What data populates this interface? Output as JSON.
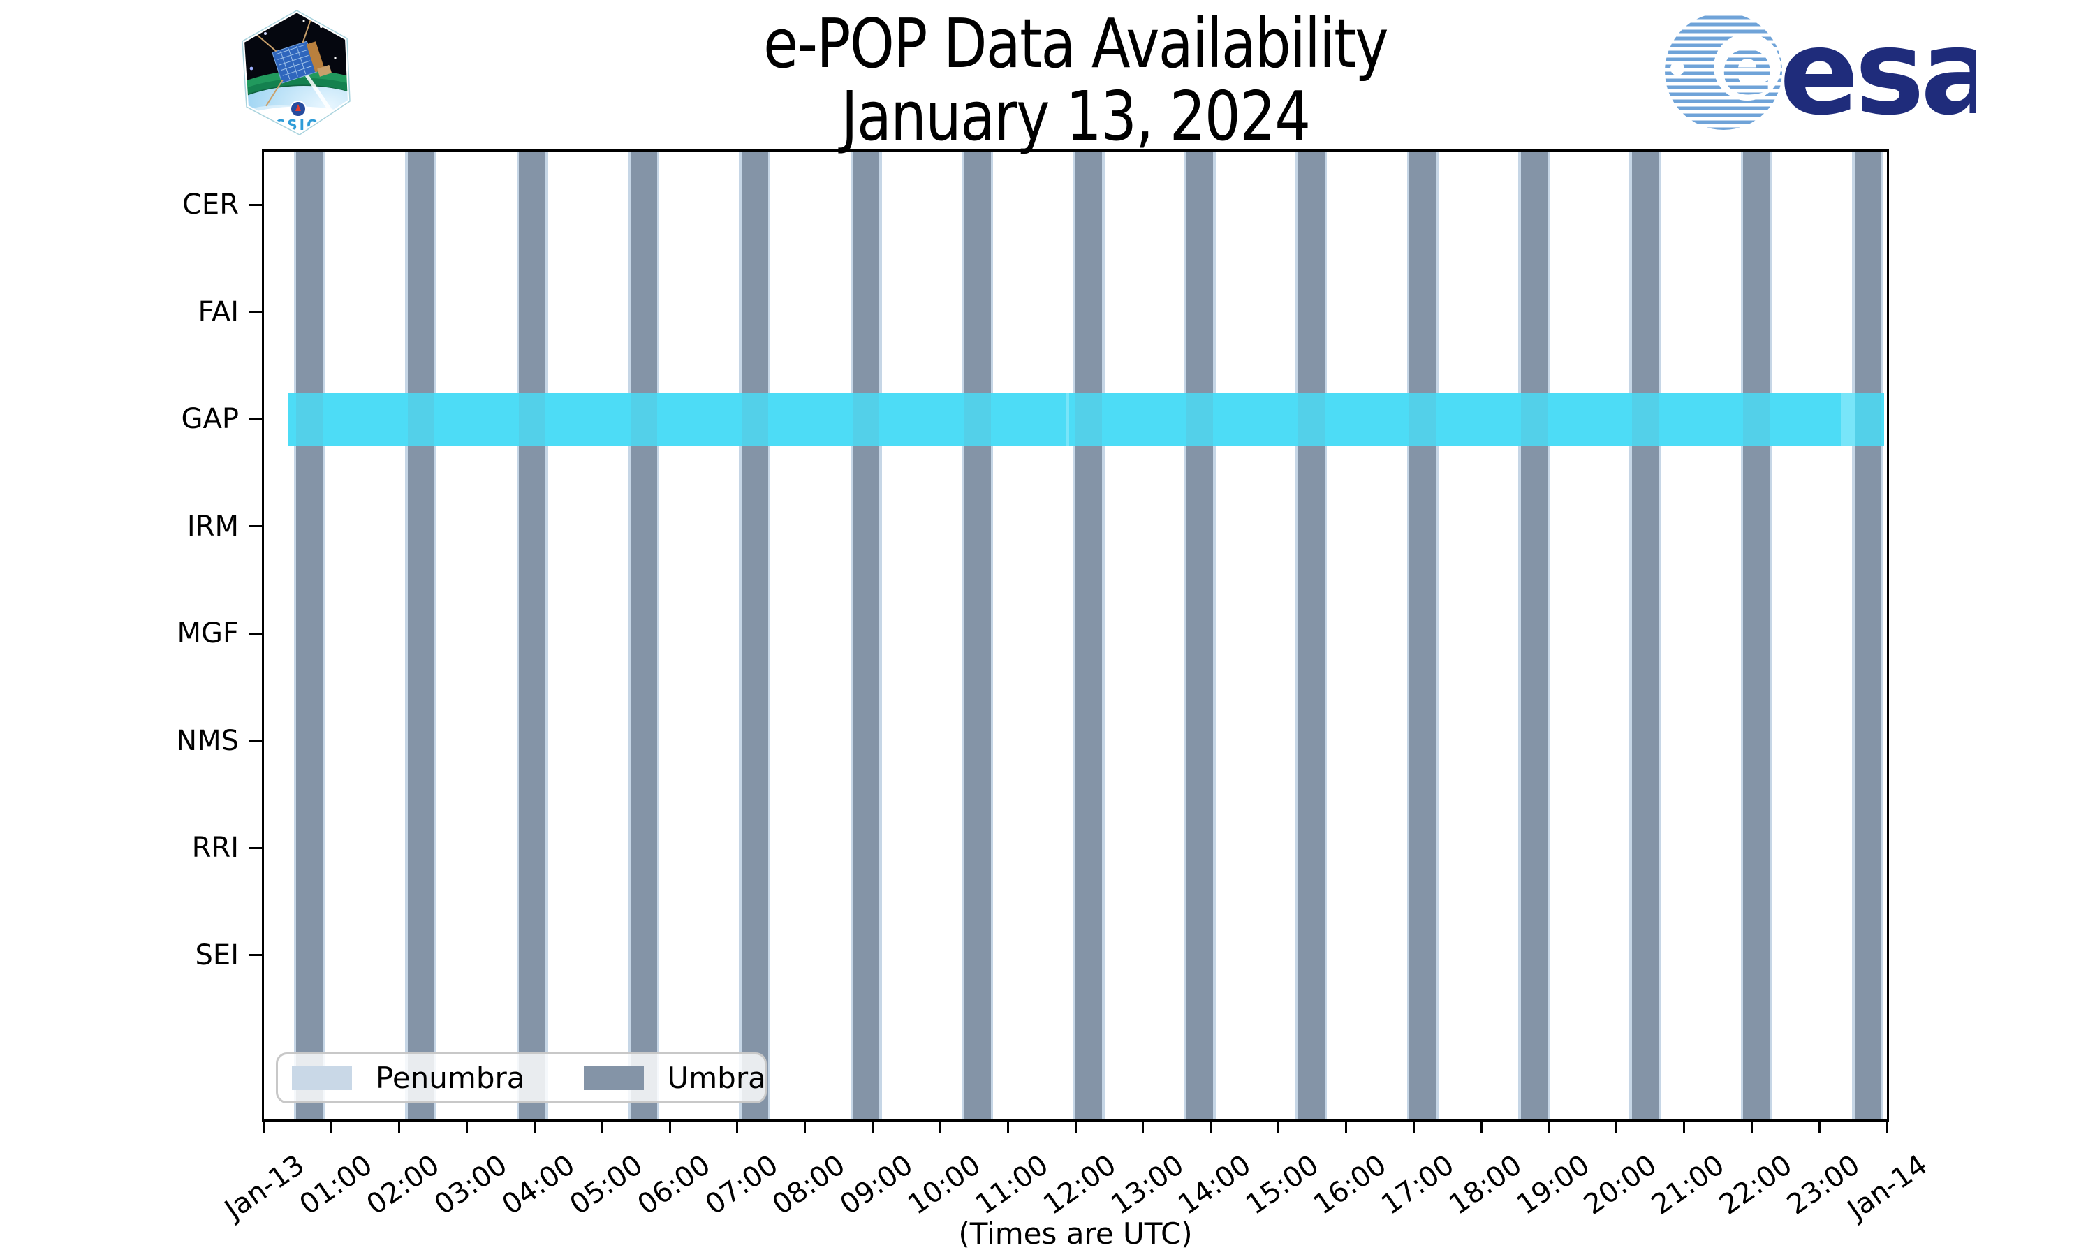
{
  "title": {
    "line1": "e-POP Data Availability",
    "line2": "January 13, 2024"
  },
  "logos": {
    "cassiope_patch_text": "CASSIOPE",
    "esa_wordmark": "esa"
  },
  "chart_data": {
    "type": "bar",
    "subtype": "horizontal-availability-timeline",
    "title": "e-POP Data Availability — January 13, 2024",
    "rows": [
      "CER",
      "FAI",
      "GAP",
      "IRM",
      "MGF",
      "NMS",
      "RRI",
      "SEI"
    ],
    "x": {
      "label": "(Times are UTC)",
      "range_hours": [
        0,
        24
      ],
      "tick_labels": [
        "Jan-13",
        "01:00",
        "02:00",
        "03:00",
        "04:00",
        "05:00",
        "06:00",
        "07:00",
        "08:00",
        "09:00",
        "10:00",
        "11:00",
        "12:00",
        "13:00",
        "14:00",
        "15:00",
        "16:00",
        "17:00",
        "18:00",
        "19:00",
        "20:00",
        "21:00",
        "22:00",
        "23:00",
        "Jan-14"
      ]
    },
    "grid": false,
    "legend": {
      "position": "lower left",
      "items": [
        {
          "label": "Penumbra",
          "color": "#C9D8E7"
        },
        {
          "label": "Umbra",
          "color": "#8494A7"
        }
      ]
    },
    "eclipse": {
      "umbra_intervals_hours": [
        [
          0.48,
          0.873
        ],
        [
          2.126,
          2.519
        ],
        [
          3.772,
          4.164
        ],
        [
          5.418,
          5.81
        ],
        [
          7.063,
          7.456
        ],
        [
          8.709,
          9.102
        ],
        [
          10.355,
          10.748
        ],
        [
          12.001,
          12.394
        ],
        [
          13.647,
          14.039
        ],
        [
          15.293,
          15.685
        ],
        [
          16.938,
          17.331
        ],
        [
          18.584,
          18.977
        ],
        [
          20.23,
          20.623
        ],
        [
          21.876,
          22.269
        ],
        [
          23.522,
          23.914
        ]
      ],
      "penumbra_pad_hours": 0.036,
      "umbra_color": "#8494A7",
      "penumbra_color": "#C6D6E6"
    },
    "availability": {
      "row": "GAP",
      "color": "#4DDCF6",
      "segments_hours": [
        [
          0.36,
          23.96
        ]
      ],
      "light_patches_hours": [
        [
          11.87,
          11.91
        ],
        [
          23.32,
          23.53
        ]
      ],
      "light_color": "#78E5F9",
      "over_umbra_color": "#53D0E9"
    }
  }
}
